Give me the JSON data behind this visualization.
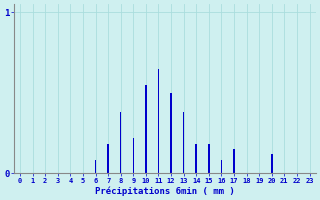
{
  "xlabel": "Précipitations 6min ( mm )",
  "bar_color": "#0000cc",
  "background_color": "#cff0f0",
  "grid_color": "#aadddd",
  "axis_color": "#888888",
  "text_color": "#0000cc",
  "categories": [
    0,
    1,
    2,
    3,
    4,
    5,
    6,
    7,
    8,
    9,
    10,
    11,
    12,
    13,
    14,
    15,
    16,
    17,
    18,
    19,
    20,
    21,
    22,
    23
  ],
  "values": [
    0,
    0,
    0,
    0,
    0,
    0,
    0.08,
    0.18,
    0.38,
    0.22,
    0.55,
    0.65,
    0.5,
    0.38,
    0.18,
    0.18,
    0.08,
    0.15,
    0,
    0,
    0.12,
    0,
    0,
    0
  ],
  "ylim": [
    0,
    1.05
  ],
  "yticks": [
    0,
    1
  ],
  "xlim": [
    -0.5,
    23.5
  ],
  "bar_width": 0.12
}
